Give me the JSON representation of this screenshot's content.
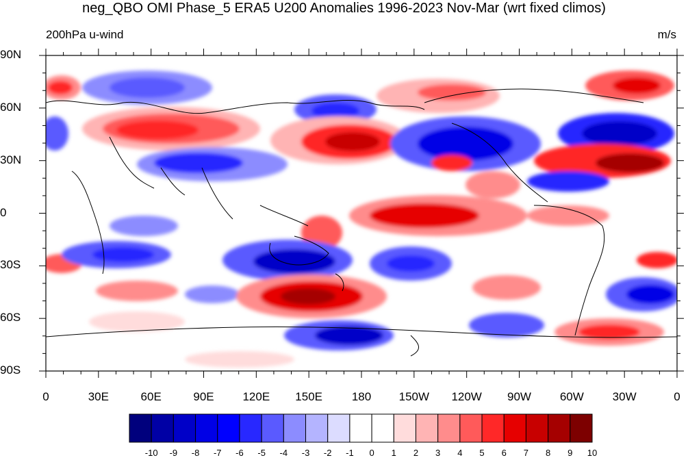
{
  "title": "neg_QBO OMI Phase_5 ERA5 U200 Anomalies 1996-2023 Nov-Mar (wrt fixed climos)",
  "subtitle_left": "200hPa u-wind",
  "subtitle_right": "m/s",
  "lat_labels": [
    "90N",
    "60N",
    "30N",
    "0",
    "30S",
    "60S",
    "90S"
  ],
  "lon_labels": [
    "0",
    "30E",
    "60E",
    "90E",
    "120E",
    "150E",
    "180",
    "150W",
    "120W",
    "90W",
    "60W",
    "30W",
    "0"
  ],
  "colorbar": {
    "labels": [
      "-10",
      "-9",
      "-8",
      "-7",
      "-6",
      "-5",
      "-4",
      "-3",
      "-2",
      "-1",
      "0",
      "1",
      "2",
      "3",
      "4",
      "5",
      "6",
      "7",
      "8",
      "9",
      "10"
    ],
    "colors": [
      "#00007d",
      "#0000a5",
      "#0000c8",
      "#0000e6",
      "#0000ff",
      "#2828ff",
      "#5a5aff",
      "#8c8cff",
      "#b4b4ff",
      "#dcdcff",
      "#ffffff",
      "#ffffff",
      "#ffdcdc",
      "#ffb4b4",
      "#ff8c8c",
      "#ff5a5a",
      "#ff2828",
      "#e60000",
      "#c80000",
      "#a50000",
      "#7d0000"
    ]
  }
}
